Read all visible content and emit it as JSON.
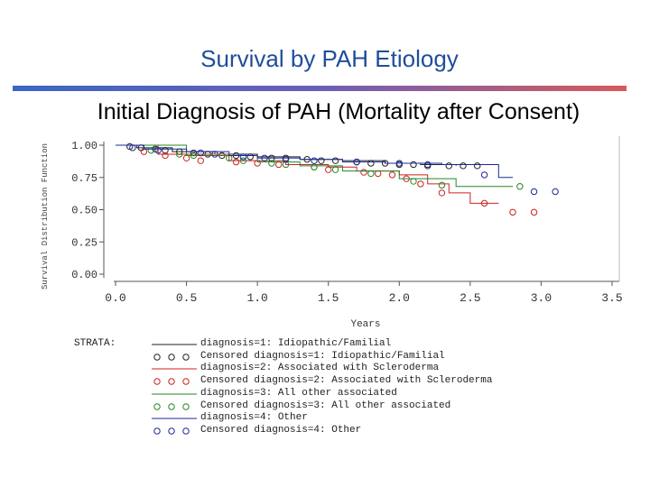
{
  "slide_title": "Survival by PAH Etiology",
  "chart_data": {
    "type": "line",
    "title": "Initial Diagnosis of PAH (Mortality after Consent)",
    "xlabel": "Years",
    "ylabel": "Survival Distribution Function",
    "xlim": [
      0,
      3.5
    ],
    "ylim": [
      0,
      1
    ],
    "x_ticks": [
      "0.0",
      "0.5",
      "1.0",
      "1.5",
      "2.0",
      "2.5",
      "3.0",
      "3.5"
    ],
    "y_ticks": [
      "0.00",
      "0.25",
      "0.50",
      "0.75",
      "1.00"
    ],
    "grid": false,
    "series": [
      {
        "name": "diagnosis=1: Idiopathic/Familial",
        "color": "#222222",
        "steps": [
          [
            0,
            1.0
          ],
          [
            0.15,
            0.98
          ],
          [
            0.4,
            0.95
          ],
          [
            0.7,
            0.93
          ],
          [
            1.0,
            0.91
          ],
          [
            1.3,
            0.89
          ],
          [
            1.6,
            0.88
          ],
          [
            1.9,
            0.86
          ],
          [
            2.15,
            0.85
          ],
          [
            2.4,
            0.84
          ]
        ],
        "censored": [
          [
            0.1,
            0.99
          ],
          [
            0.18,
            0.98
          ],
          [
            0.28,
            0.97
          ],
          [
            0.35,
            0.96
          ],
          [
            0.45,
            0.95
          ],
          [
            0.55,
            0.94
          ],
          [
            0.65,
            0.93
          ],
          [
            0.75,
            0.92
          ],
          [
            0.85,
            0.92
          ],
          [
            0.95,
            0.91
          ],
          [
            1.1,
            0.9
          ],
          [
            1.2,
            0.9
          ],
          [
            1.35,
            0.89
          ],
          [
            1.45,
            0.88
          ],
          [
            1.55,
            0.88
          ],
          [
            1.7,
            0.87
          ],
          [
            1.8,
            0.86
          ],
          [
            1.9,
            0.86
          ],
          [
            2.0,
            0.85
          ],
          [
            2.1,
            0.85
          ],
          [
            2.2,
            0.84
          ],
          [
            2.35,
            0.84
          ],
          [
            2.45,
            0.84
          ],
          [
            2.55,
            0.84
          ]
        ]
      },
      {
        "name": "diagnosis=2: Associated with Scleroderma",
        "color": "#cc2222",
        "steps": [
          [
            0,
            1.0
          ],
          [
            0.3,
            0.93
          ],
          [
            0.8,
            0.88
          ],
          [
            1.2,
            0.85
          ],
          [
            1.5,
            0.83
          ],
          [
            1.7,
            0.8
          ],
          [
            2.0,
            0.77
          ],
          [
            2.2,
            0.7
          ],
          [
            2.35,
            0.63
          ],
          [
            2.5,
            0.55
          ],
          [
            2.7,
            0.55
          ]
        ],
        "censored": [
          [
            0.2,
            0.95
          ],
          [
            0.35,
            0.92
          ],
          [
            0.5,
            0.9
          ],
          [
            0.6,
            0.88
          ],
          [
            0.85,
            0.87
          ],
          [
            1.0,
            0.86
          ],
          [
            1.15,
            0.85
          ],
          [
            1.4,
            0.83
          ],
          [
            1.5,
            0.81
          ],
          [
            1.75,
            0.79
          ],
          [
            1.85,
            0.78
          ],
          [
            1.95,
            0.77
          ],
          [
            2.05,
            0.74
          ],
          [
            2.15,
            0.7
          ],
          [
            2.3,
            0.63
          ],
          [
            2.6,
            0.55
          ],
          [
            2.8,
            0.48
          ],
          [
            2.95,
            0.48
          ]
        ]
      },
      {
        "name": "diagnosis=3: All other associated",
        "color": "#22882a",
        "steps": [
          [
            0,
            1.0
          ],
          [
            0.5,
            0.92
          ],
          [
            1.0,
            0.87
          ],
          [
            1.3,
            0.84
          ],
          [
            1.6,
            0.8
          ],
          [
            2.0,
            0.74
          ],
          [
            2.4,
            0.68
          ],
          [
            2.6,
            0.68
          ],
          [
            2.8,
            0.68
          ]
        ],
        "censored": [
          [
            0.25,
            0.96
          ],
          [
            0.45,
            0.93
          ],
          [
            0.55,
            0.92
          ],
          [
            0.8,
            0.9
          ],
          [
            0.9,
            0.88
          ],
          [
            1.1,
            0.86
          ],
          [
            1.2,
            0.85
          ],
          [
            1.4,
            0.83
          ],
          [
            1.55,
            0.81
          ],
          [
            1.8,
            0.78
          ],
          [
            2.1,
            0.72
          ],
          [
            2.3,
            0.69
          ],
          [
            2.85,
            0.68
          ]
        ]
      },
      {
        "name": "diagnosis=4: Other",
        "color": "#1a2a9a",
        "steps": [
          [
            0,
            1.0
          ],
          [
            0.2,
            0.97
          ],
          [
            0.5,
            0.95
          ],
          [
            0.8,
            0.92
          ],
          [
            1.0,
            0.9
          ],
          [
            1.3,
            0.89
          ],
          [
            1.6,
            0.87
          ],
          [
            1.9,
            0.86
          ],
          [
            2.3,
            0.85
          ],
          [
            2.7,
            0.75
          ],
          [
            2.8,
            0.75
          ]
        ],
        "censored": [
          [
            0.12,
            0.98
          ],
          [
            0.3,
            0.96
          ],
          [
            0.6,
            0.94
          ],
          [
            0.7,
            0.93
          ],
          [
            0.9,
            0.91
          ],
          [
            1.05,
            0.9
          ],
          [
            1.2,
            0.89
          ],
          [
            1.4,
            0.88
          ],
          [
            1.7,
            0.87
          ],
          [
            2.0,
            0.86
          ],
          [
            2.2,
            0.85
          ],
          [
            2.6,
            0.77
          ],
          [
            2.95,
            0.64
          ],
          [
            3.1,
            0.64
          ]
        ]
      }
    ],
    "legend": {
      "header": "STRATA:",
      "entries": [
        {
          "symbol": "line",
          "color": "#222222",
          "text": "diagnosis=1: Idiopathic/Familial"
        },
        {
          "symbol": "circles",
          "color": "#222222",
          "text": "Censored diagnosis=1: Idiopathic/Familial"
        },
        {
          "symbol": "line",
          "color": "#cc2222",
          "text": "diagnosis=2: Associated with Scleroderma"
        },
        {
          "symbol": "circles",
          "color": "#cc2222",
          "text": "Censored diagnosis=2: Associated with Scleroderma"
        },
        {
          "symbol": "line",
          "color": "#22882a",
          "text": "diagnosis=3: All other associated"
        },
        {
          "symbol": "circles",
          "color": "#22882a",
          "text": "Censored diagnosis=3: All other associated"
        },
        {
          "symbol": "line",
          "color": "#1a2a9a",
          "text": "diagnosis=4: Other"
        },
        {
          "symbol": "circles",
          "color": "#1a2a9a",
          "text": "Censored diagnosis=4: Other"
        }
      ]
    }
  }
}
